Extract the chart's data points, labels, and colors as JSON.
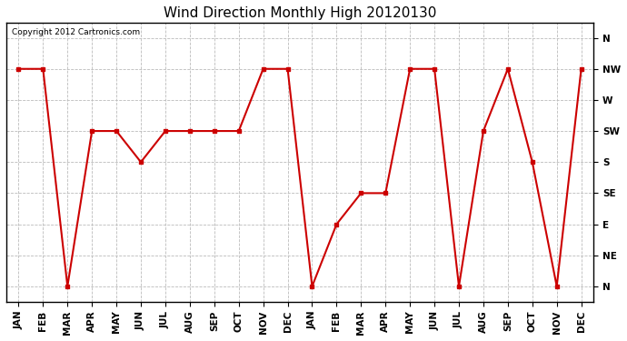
{
  "title": "Wind Direction Monthly High 20120130",
  "copyright": "Copyright 2012 Cartronics.com",
  "x_labels": [
    "JAN",
    "FEB",
    "MAR",
    "APR",
    "MAY",
    "JUN",
    "JUL",
    "AUG",
    "SEP",
    "OCT",
    "NOV",
    "DEC",
    "JAN",
    "FEB",
    "MAR",
    "APR",
    "MAY",
    "JUN",
    "JUL",
    "AUG",
    "SEP",
    "OCT",
    "NOV",
    "DEC"
  ],
  "y_tick_labels": [
    "N",
    "NW",
    "W",
    "SW",
    "S",
    "SE",
    "E",
    "NE",
    "N"
  ],
  "data_values": [
    7,
    7,
    0,
    5,
    5,
    4,
    5,
    5,
    5,
    5,
    7,
    7,
    0,
    2,
    3,
    3,
    7,
    7,
    0,
    5,
    7,
    4,
    0,
    7
  ],
  "line_color": "#cc0000",
  "marker": "s",
  "marker_size": 3,
  "background_color": "#ffffff",
  "plot_bg_color": "#ffffff",
  "grid_color": "#bbbbbb",
  "title_fontsize": 11,
  "tick_fontsize": 7.5
}
